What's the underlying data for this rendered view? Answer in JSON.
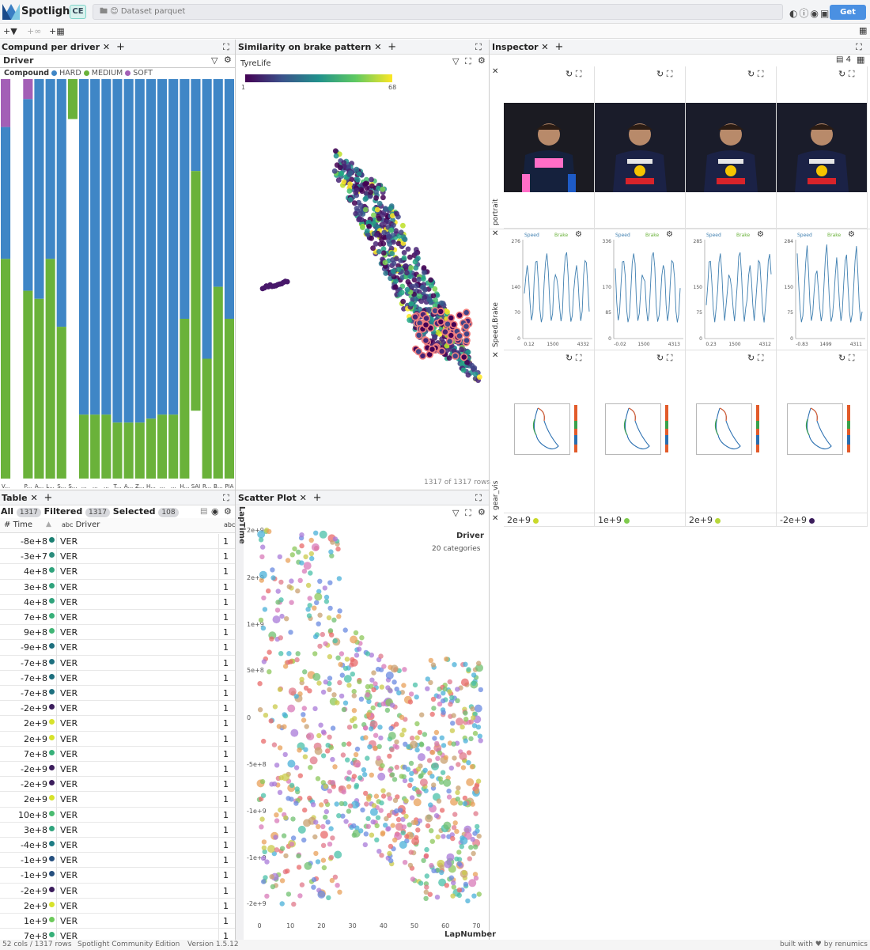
{
  "app": {
    "title": "Spotlight",
    "edition_badge": "CE",
    "dataset_label": "Dataset parquet",
    "get_pro": "Get PRO"
  },
  "toolbar": {
    "add_filter": "+",
    "add_view": "+",
    "add_layout": "+"
  },
  "colors": {
    "hard": "#3f86c6",
    "medium": "#6ab23a",
    "soft": "#a35fb6",
    "accent": "#4a90e2"
  },
  "panels": {
    "compound": {
      "tab": "Compund per driver",
      "column": "Driver",
      "legend_title": "Compound",
      "legend": [
        "HARD",
        "MEDIUM",
        "SOFT"
      ],
      "x_labels": [
        "V...",
        "",
        "P...",
        "A...",
        "L...",
        "S...",
        "S...",
        "...",
        "...",
        "...",
        "T...",
        "A...",
        "Z...",
        "H...",
        "...",
        "...",
        "H...",
        "SAI",
        "R...",
        "B...",
        "PIA"
      ]
    },
    "similarity": {
      "tab": "Similarity on brake pattern",
      "color_label": "TyreLife",
      "color_min": "1",
      "color_max": "68",
      "row_count": "1317 of 1317 rows"
    },
    "table": {
      "tab": "Table",
      "all_label": "All",
      "all_count": "1317",
      "filtered_label": "Filtered",
      "filtered_count": "1317",
      "selected_label": "Selected",
      "selected_count": "108",
      "col_time": "Time",
      "col_driver": "Driver",
      "col_driver_type": "abc",
      "col_last": "abc",
      "rows": [
        {
          "time": "-8e+8",
          "color": "#1a7f72",
          "driver": "VER",
          "v": "1"
        },
        {
          "time": "-3e+7",
          "color": "#2a8c7c",
          "driver": "VER",
          "v": "1"
        },
        {
          "time": "4e+8",
          "color": "#2fa37c",
          "driver": "VER",
          "v": "1"
        },
        {
          "time": "3e+8",
          "color": "#2fa37c",
          "driver": "VER",
          "v": "1"
        },
        {
          "time": "4e+8",
          "color": "#2fa37c",
          "driver": "VER",
          "v": "1"
        },
        {
          "time": "7e+8",
          "color": "#37b079",
          "driver": "VER",
          "v": "1"
        },
        {
          "time": "9e+8",
          "color": "#40b575",
          "driver": "VER",
          "v": "1"
        },
        {
          "time": "-9e+8",
          "color": "#1d6f7e",
          "driver": "VER",
          "v": "1"
        },
        {
          "time": "-7e+8",
          "color": "#1d6f7e",
          "driver": "VER",
          "v": "1"
        },
        {
          "time": "-7e+8",
          "color": "#1d6f7e",
          "driver": "VER",
          "v": "1"
        },
        {
          "time": "-7e+8",
          "color": "#1d6f7e",
          "driver": "VER",
          "v": "1"
        },
        {
          "time": "-2e+9",
          "color": "#3b1d5c",
          "driver": "VER",
          "v": "1"
        },
        {
          "time": "2e+9",
          "color": "#d7e22b",
          "driver": "VER",
          "v": "1"
        },
        {
          "time": "2e+9",
          "color": "#d7e22b",
          "driver": "VER",
          "v": "1"
        },
        {
          "time": "7e+8",
          "color": "#37b079",
          "driver": "VER",
          "v": "1"
        },
        {
          "time": "-2e+9",
          "color": "#3b1d5c",
          "driver": "VER",
          "v": "1"
        },
        {
          "time": "-2e+9",
          "color": "#3b1d5c",
          "driver": "VER",
          "v": "1"
        },
        {
          "time": "2e+9",
          "color": "#d7e22b",
          "driver": "VER",
          "v": "1"
        },
        {
          "time": "10e+8",
          "color": "#49bb70",
          "driver": "VER",
          "v": "1"
        },
        {
          "time": "3e+8",
          "color": "#2fa37c",
          "driver": "VER",
          "v": "1"
        },
        {
          "time": "-4e+8",
          "color": "#1d7c84",
          "driver": "VER",
          "v": "1"
        },
        {
          "time": "-1e+9",
          "color": "#254f7e",
          "driver": "VER",
          "v": "1"
        },
        {
          "time": "-1e+9",
          "color": "#254f7e",
          "driver": "VER",
          "v": "1"
        },
        {
          "time": "-2e+9",
          "color": "#3b1d5c",
          "driver": "VER",
          "v": "1"
        },
        {
          "time": "2e+9",
          "color": "#d7e22b",
          "driver": "VER",
          "v": "1"
        },
        {
          "time": "1e+9",
          "color": "#6cc95a",
          "driver": "VER",
          "v": "1"
        },
        {
          "time": "7e+8",
          "color": "#37b079",
          "driver": "VER",
          "v": "1"
        }
      ]
    },
    "scatter": {
      "tab": "Scatter Plot",
      "legend_title": "Driver",
      "legend_sub": "20 categories",
      "y_axis_label": "LapTime",
      "x_axis_label": "LapNumber",
      "y_ticks": [
        "2e+9",
        "2e+9",
        "1e+9",
        "5e+8",
        "0",
        "-5e+8",
        "-1e+9",
        "-1e+9",
        "-2e+9"
      ],
      "x_ticks": [
        "0",
        "10",
        "20",
        "30",
        "40",
        "50",
        "60",
        "70"
      ]
    },
    "inspector": {
      "tab": "Inspector",
      "column_count": "4",
      "row_labels": [
        "portrait",
        "Speed,Brake",
        "gear_vis"
      ],
      "chart_legend_speed": "Speed",
      "chart_legend_brake": "Brake",
      "cards": [
        {
          "y_ticks": [
            "276",
            "140",
            "70",
            "0"
          ],
          "x_ticks": [
            "0.12",
            "1500",
            "4332"
          ],
          "footer": "2e+9",
          "footer_color": "#c9d92a"
        },
        {
          "y_ticks": [
            "336",
            "170",
            "85",
            "0"
          ],
          "x_ticks": [
            "-0.02",
            "1500",
            "4313"
          ],
          "footer": "1e+9",
          "footer_color": "#7fcb4d"
        },
        {
          "y_ticks": [
            "285",
            "150",
            "75",
            "0"
          ],
          "x_ticks": [
            "0.23",
            "1500",
            "4312"
          ],
          "footer": "2e+9",
          "footer_color": "#b7d73a"
        },
        {
          "y_ticks": [
            "284",
            "150",
            "75",
            "0"
          ],
          "x_ticks": [
            "-0.83",
            "1499",
            "4311"
          ],
          "footer": "-2e+9",
          "footer_color": "#3b1d5c"
        }
      ]
    }
  },
  "status": {
    "cols_rows": "52 cols / 1317 rows",
    "edition": "Spotlight Community Edition",
    "version": "Version 1.5.12",
    "built": "built with ♥ by renumics"
  },
  "chart_data": [
    {
      "type": "bar",
      "title": "Compund per driver",
      "xlabel": "Driver",
      "categories": [
        "V...",
        "",
        "P...",
        "A...",
        "L...",
        "S...",
        "S...",
        "...",
        "...",
        "...",
        "T...",
        "A...",
        "Z...",
        "H...",
        "...",
        "...",
        "H...",
        "SAI",
        "R...",
        "B...",
        "PIA"
      ],
      "stacked": true,
      "normalized": true,
      "series": [
        {
          "name": "SOFT",
          "values": [
            0.12,
            0,
            0.05,
            0,
            0,
            0,
            0,
            0,
            0,
            0,
            0,
            0,
            0,
            0,
            0,
            0,
            0,
            0,
            0,
            0,
            0
          ]
        },
        {
          "name": "HARD",
          "values": [
            0.33,
            0,
            0.48,
            0.55,
            0.45,
            0.62,
            0.0,
            0.84,
            0.84,
            0.84,
            0.86,
            0.86,
            0.86,
            0.85,
            0.84,
            0.84,
            0.6,
            0.23,
            0.7,
            0.52,
            0.6
          ]
        },
        {
          "name": "MEDIUM",
          "values": [
            0.55,
            0,
            0.47,
            0.45,
            0.55,
            0.38,
            0.1,
            0.16,
            0.16,
            0.16,
            0.14,
            0.14,
            0.14,
            0.15,
            0.16,
            0.16,
            0.4,
            0.6,
            0.3,
            0.48,
            0.4
          ]
        }
      ]
    }
  ]
}
